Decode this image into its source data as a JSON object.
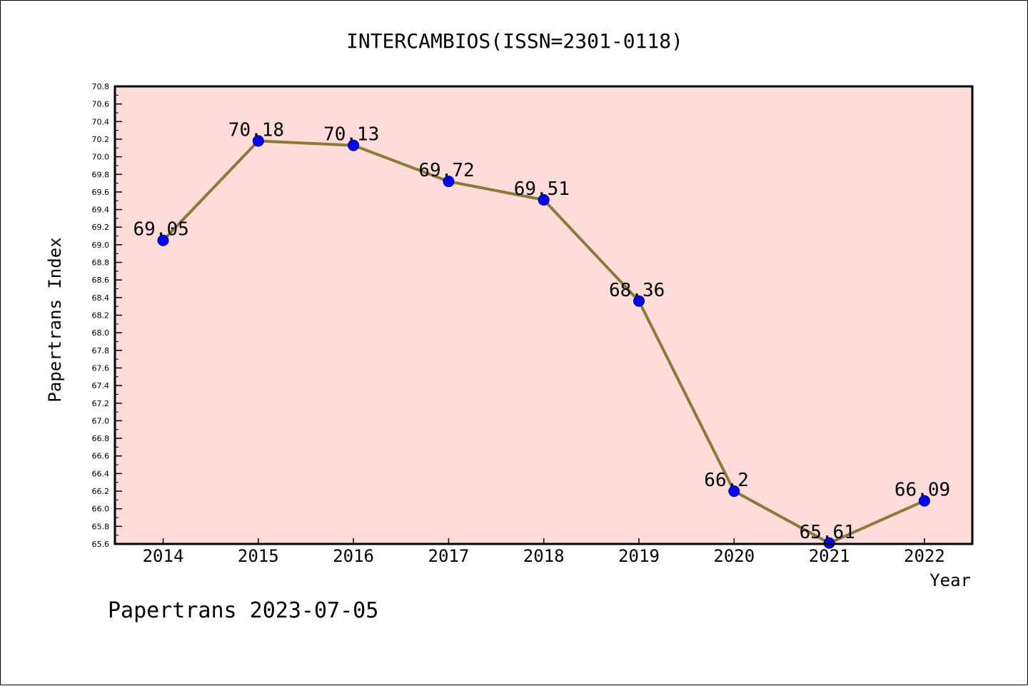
{
  "chart_data": {
    "type": "line",
    "title": "INTERCAMBIOS(ISSN=2301-0118)",
    "xlabel": "Year",
    "ylabel": "Papertrans Index",
    "x": [
      "2014",
      "2015",
      "2016",
      "2017",
      "2018",
      "2019",
      "2020",
      "2021",
      "2022"
    ],
    "values": [
      69.05,
      70.18,
      70.13,
      69.72,
      69.51,
      68.36,
      66.2,
      65.61,
      66.09
    ],
    "data_labels": [
      "69.05",
      "70.18",
      "70.13",
      "69.72",
      "69.51",
      "68.36",
      "66.2",
      "65.61",
      "66.09"
    ],
    "ylim": [
      65.6,
      70.8
    ],
    "yticks": [
      "65.6",
      "65.8",
      "66.0",
      "66.2",
      "66.4",
      "66.6",
      "66.8",
      "67.0",
      "67.2",
      "67.4",
      "67.6",
      "67.8",
      "68.0",
      "68.2",
      "68.4",
      "68.6",
      "68.8",
      "69.0",
      "69.2",
      "69.4",
      "69.6",
      "69.8",
      "70.0",
      "70.2",
      "70.4",
      "70.6",
      "70.8"
    ],
    "grid": false,
    "legend": "none",
    "colors": {
      "plot_background": "#fddcda",
      "line": "#8b7a3a",
      "marker": "#0000ff"
    }
  },
  "footer": {
    "watermark": "Papertrans 2023-07-05"
  }
}
